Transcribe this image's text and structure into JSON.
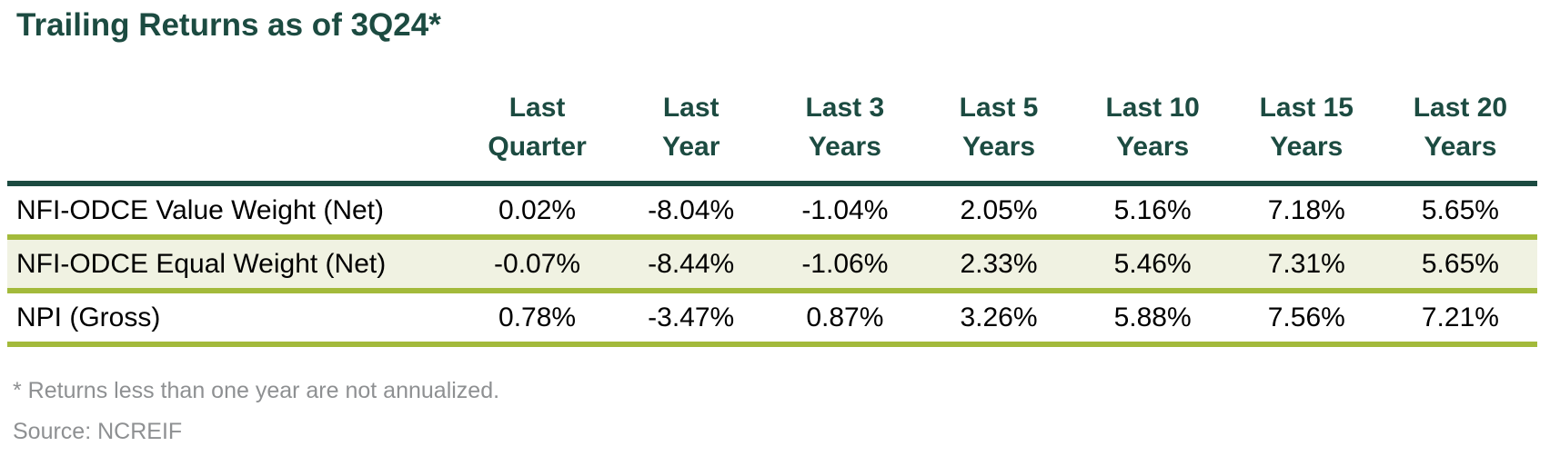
{
  "title": "Trailing Returns as of 3Q24*",
  "table": {
    "columns": [
      {
        "line1": "Last",
        "line2": "Quarter"
      },
      {
        "line1": "Last",
        "line2": "Year"
      },
      {
        "line1": "Last 3",
        "line2": "Years"
      },
      {
        "line1": "Last 5",
        "line2": "Years"
      },
      {
        "line1": "Last 10",
        "line2": "Years"
      },
      {
        "line1": "Last 15",
        "line2": "Years"
      },
      {
        "line1": "Last 20",
        "line2": "Years"
      }
    ],
    "rows": [
      {
        "label": "NFI-ODCE Value Weight (Net)",
        "values": [
          "0.02%",
          "-8.04%",
          "-1.04%",
          "2.05%",
          "5.16%",
          "7.18%",
          "5.65%"
        ]
      },
      {
        "label": "NFI-ODCE Equal Weight (Net)",
        "values": [
          "-0.07%",
          "-8.44%",
          "-1.06%",
          "2.33%",
          "5.46%",
          "7.31%",
          "5.65%"
        ]
      },
      {
        "label": "NPI (Gross)",
        "values": [
          "0.78%",
          "-3.47%",
          "0.87%",
          "3.26%",
          "5.88%",
          "7.56%",
          "7.21%"
        ]
      }
    ]
  },
  "footnotes": {
    "annualized_note": "* Returns less than one year are not annualized.",
    "source": "Source: NCREIF"
  },
  "colors": {
    "heading_green": "#1c4b41",
    "header_rule": "#1c4b41",
    "row_divider_olive": "#a3ba3b",
    "highlight_row_bg": "#f0f2e2",
    "footnote_gray": "#8e9092",
    "body_text": "#000000"
  },
  "chart_data": {
    "type": "table",
    "title": "Trailing Returns as of 3Q24*",
    "units": "percent",
    "columns": [
      "",
      "Last Quarter",
      "Last Year",
      "Last 3 Years",
      "Last 5 Years",
      "Last 10 Years",
      "Last 15 Years",
      "Last 20 Years"
    ],
    "rows": [
      [
        "NFI-ODCE Value Weight (Net)",
        0.02,
        -8.04,
        -1.04,
        2.05,
        5.16,
        7.18,
        5.65
      ],
      [
        "NFI-ODCE Equal Weight (Net)",
        -0.07,
        -8.44,
        -1.06,
        2.33,
        5.46,
        7.31,
        5.65
      ],
      [
        "NPI (Gross)",
        0.78,
        -3.47,
        0.87,
        3.26,
        5.88,
        7.56,
        7.21
      ]
    ],
    "highlighted_row": "NFI-ODCE Equal Weight (Net)",
    "footnotes": [
      "* Returns less than one year are not annualized.",
      "Source: NCREIF"
    ]
  }
}
